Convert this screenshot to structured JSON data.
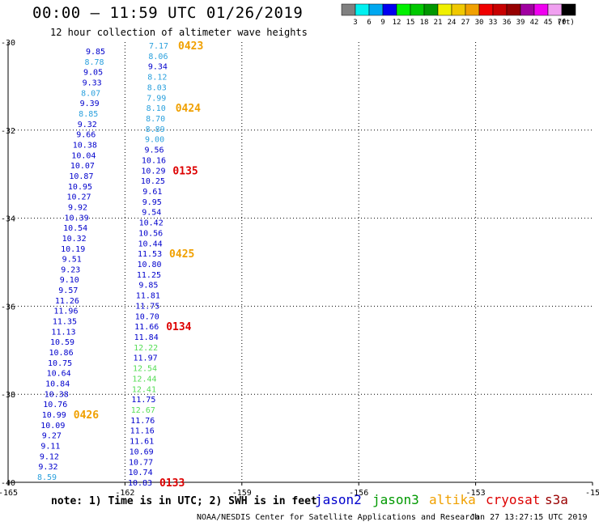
{
  "title": "00:00 — 11:59 UTC 01/26/2019",
  "subtitle": "12 hour collection of altimeter wave heights",
  "note": "note: 1) Time is in UTC; 2) SWH is in feet",
  "credit": "NOAA/NESDIS Center for Satellite Applications and Research",
  "timestamp": "Jan 27 13:27:15 UTC 2019",
  "satellites": [
    {
      "name": "jason2",
      "color": "#0000cc"
    },
    {
      "name": "jason3",
      "color": "#009900"
    },
    {
      "name": "altika",
      "color": "#f0a000"
    },
    {
      "name": "cryosat",
      "color": "#dd0000"
    },
    {
      "name": "s3a",
      "color": "#990000"
    }
  ],
  "chart_data": {
    "type": "scatter",
    "title": "00:00 — 11:59 UTC 01/26/2019",
    "subtitle": "12 hour collection of altimeter wave heights",
    "xlim": [
      -165,
      -150
    ],
    "ylim": [
      -40,
      -30
    ],
    "x_ticks": [
      "-165",
      "-162",
      "-159",
      "-156",
      "-153",
      "-15"
    ],
    "y_ticks": [
      "-30",
      "-32",
      "-34",
      "-36",
      "-38",
      "-40"
    ],
    "color_scale": {
      "unit": "(ft)",
      "thresholds": [
        "3",
        "6",
        "9",
        "12",
        "15",
        "18",
        "21",
        "24",
        "27",
        "30",
        "33",
        "36",
        "39",
        "42",
        "45",
        "70"
      ],
      "colors": [
        "#808080",
        "#00f0f0",
        "#00a8f0",
        "#0000f0",
        "#00f000",
        "#00c800",
        "#009600",
        "#f0f000",
        "#f0c800",
        "#f0a000",
        "#f00000",
        "#c80000",
        "#960000",
        "#a000a0",
        "#f000f0",
        "#f0a0f0",
        "#000000"
      ]
    },
    "tracks": [
      {
        "x1": -163.0,
        "x2": -163.9,
        "points": [
          [
            "9.85",
            "#0000cc"
          ],
          [
            "8.78",
            "#2aa0dd"
          ],
          [
            "9.05",
            "#0000cc"
          ],
          [
            "9.33",
            "#0000cc"
          ],
          [
            "8.07",
            "#2aa0dd"
          ],
          [
            "9.39",
            "#0000cc"
          ],
          [
            "8.85",
            "#2aa0dd"
          ],
          [
            "9.32",
            "#0000cc"
          ],
          [
            "9.66",
            "#0000cc"
          ],
          [
            "10.38",
            "#0000cc"
          ],
          [
            "10.04",
            "#0000cc"
          ],
          [
            "10.07",
            "#0000cc"
          ],
          [
            "10.87",
            "#0000cc"
          ],
          [
            "10.95",
            "#0000cc"
          ],
          [
            "10.27",
            "#0000cc"
          ],
          [
            "9.92",
            "#0000cc"
          ],
          [
            "10.39",
            "#0000cc"
          ],
          [
            "10.54",
            "#0000cc"
          ],
          [
            "10.32",
            "#0000cc"
          ],
          [
            "10.19",
            "#0000cc"
          ],
          [
            "9.51",
            "#0000cc"
          ],
          [
            "9.23",
            "#0000cc"
          ],
          [
            "9.10",
            "#0000cc"
          ],
          [
            "9.57",
            "#0000cc"
          ],
          [
            "11.26",
            "#0000cc"
          ],
          [
            "11.96",
            "#0000cc"
          ],
          [
            "11.35",
            "#0000cc"
          ],
          [
            "11.13",
            "#0000cc"
          ],
          [
            "10.59",
            "#0000cc"
          ],
          [
            "10.86",
            "#0000cc"
          ],
          [
            "10.75",
            "#0000cc"
          ],
          [
            "10.64",
            "#0000cc"
          ],
          [
            "10.84",
            "#0000cc"
          ],
          [
            "10.38",
            "#0000cc"
          ],
          [
            "10.76",
            "#0000cc"
          ],
          [
            "10.99",
            "#0000cc"
          ],
          [
            "10.09",
            "#0000cc"
          ],
          [
            "9.27",
            "#0000cc"
          ],
          [
            "9.11",
            "#0000cc"
          ],
          [
            "9.12",
            "#0000cc"
          ],
          [
            "9.32",
            "#0000cc"
          ],
          [
            "8.59",
            "#2aa0dd"
          ]
        ],
        "time_labels": [
          {
            "text": "0426",
            "color": "#f0a000",
            "index": 35
          }
        ]
      },
      {
        "x1": -161.9,
        "x2": -162.0,
        "points": [
          [
            "7.17",
            "#2aa0dd"
          ],
          [
            "8.06",
            "#2aa0dd"
          ],
          [
            "9.34",
            "#0000cc"
          ],
          [
            "8.12",
            "#2aa0dd"
          ],
          [
            "8.03",
            "#2aa0dd"
          ],
          [
            "7.99",
            "#2aa0dd"
          ],
          [
            "8.10",
            "#2aa0dd"
          ],
          [
            "8.70",
            "#2aa0dd"
          ],
          [
            "8.89",
            "#2aa0dd"
          ],
          [
            "9.00",
            "#2aa0dd"
          ],
          [
            "9.56",
            "#0000cc"
          ],
          [
            "10.16",
            "#0000cc"
          ],
          [
            "10.29",
            "#0000cc"
          ],
          [
            "10.25",
            "#0000cc"
          ],
          [
            "9.61",
            "#0000cc"
          ],
          [
            "9.95",
            "#0000cc"
          ],
          [
            "9.54",
            "#0000cc"
          ],
          [
            "10.42",
            "#0000cc"
          ],
          [
            "10.56",
            "#0000cc"
          ],
          [
            "10.44",
            "#0000cc"
          ],
          [
            "11.53",
            "#0000cc"
          ],
          [
            "10.80",
            "#0000cc"
          ],
          [
            "11.25",
            "#0000cc"
          ],
          [
            "9.85",
            "#0000cc"
          ],
          [
            "11.81",
            "#0000cc"
          ],
          [
            "11.75",
            "#0000cc"
          ],
          [
            "10.70",
            "#0000cc"
          ],
          [
            "11.66",
            "#0000cc"
          ],
          [
            "11.84",
            "#0000cc"
          ],
          [
            "12.22",
            "#55dd55"
          ],
          [
            "11.97",
            "#0000cc"
          ],
          [
            "12.54",
            "#55dd55"
          ],
          [
            "12.44",
            "#55dd55"
          ],
          [
            "12.41",
            "#55dd55"
          ],
          [
            "11.75",
            "#0000cc"
          ],
          [
            "12.67",
            "#55dd55"
          ],
          [
            "11.76",
            "#0000cc"
          ],
          [
            "11.16",
            "#0000cc"
          ],
          [
            "11.61",
            "#0000cc"
          ],
          [
            "10.69",
            "#0000cc"
          ],
          [
            "10.77",
            "#0000cc"
          ],
          [
            "10.74",
            "#0000cc"
          ],
          [
            "10.83",
            "#0000cc"
          ]
        ],
        "time_labels": [
          {
            "text": "0423",
            "color": "#f0a000",
            "index": 0
          },
          {
            "text": "0424",
            "color": "#f0a000",
            "index": 6
          },
          {
            "text": "0135",
            "color": "#dd0000",
            "index": 12
          },
          {
            "text": "0425",
            "color": "#f0a000",
            "index": 20
          },
          {
            "text": "0134",
            "color": "#dd0000",
            "index": 27
          },
          {
            "text": "0133",
            "color": "#dd0000",
            "index": 42
          }
        ]
      }
    ]
  }
}
